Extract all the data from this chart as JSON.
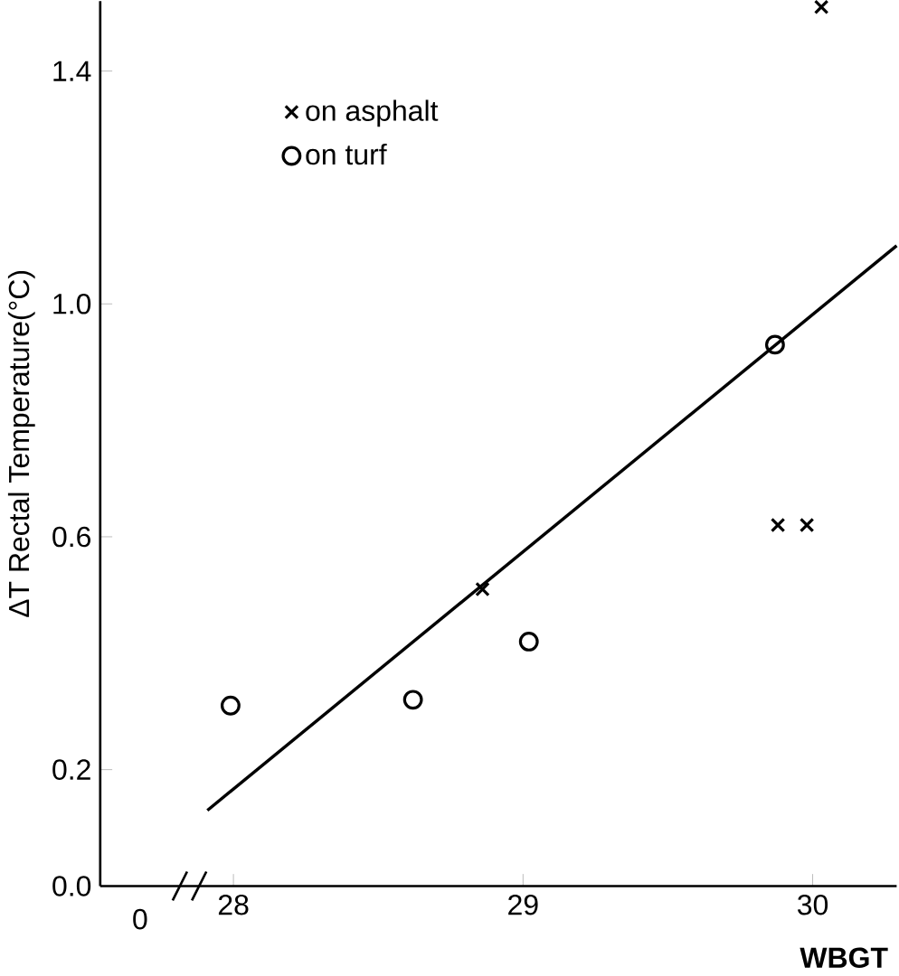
{
  "chart_data": {
    "type": "scatter",
    "xlabel": "WBGT",
    "ylabel": "ΔT Rectal Temperature(°C)",
    "xlim": [
      27.54,
      30.29
    ],
    "ylim": [
      0.0,
      1.52
    ],
    "xticks": [
      28,
      29,
      30
    ],
    "yticks": [
      {
        "value": 0.0,
        "label": "0.0"
      },
      0.2,
      0.6,
      {
        "value": 1.0,
        "label": "1.0"
      },
      1.4
    ],
    "annotations": [
      "0"
    ],
    "legend": "top left",
    "grid": false,
    "series": [
      {
        "name": "on asphalt",
        "marker": "cross",
        "color": "#000000",
        "x": [
          28.86,
          29.88,
          29.98,
          30.03
        ],
        "values": [
          0.51,
          0.62,
          0.62,
          1.51
        ]
      },
      {
        "name": "on turf",
        "marker": "circle",
        "color": "#000000",
        "x": [
          27.99,
          28.62,
          29.02,
          29.87
        ],
        "values": [
          0.31,
          0.32,
          0.42,
          0.93
        ]
      },
      {
        "type": "line",
        "marker": "none",
        "line_style": "solid",
        "color": "#000000",
        "x": [
          27.91,
          30.29
        ],
        "values": [
          0.13,
          1.1
        ]
      }
    ]
  }
}
